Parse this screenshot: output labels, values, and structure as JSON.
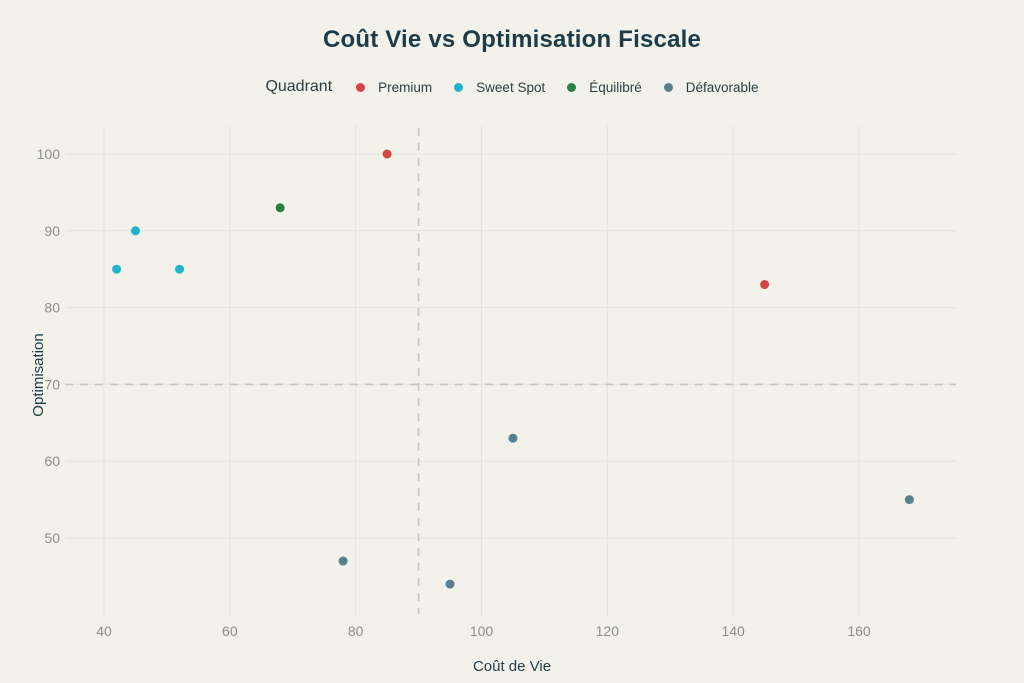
{
  "page": {
    "background_color": "#F2F1EA"
  },
  "chart_data": {
    "type": "scatter",
    "title": "Coût Vie vs Optimisation Fiscale",
    "xlabel": "Coût de Vie",
    "ylabel": "Optimisation",
    "legend": {
      "title": "Quadrant",
      "position": "top"
    },
    "grid": true,
    "xlim": [
      38,
      176
    ],
    "ylim": [
      41,
      104
    ],
    "x_ticks": [
      40,
      60,
      80,
      100,
      120,
      140,
      160
    ],
    "y_ticks": [
      50,
      60,
      70,
      80,
      90,
      100
    ],
    "reference_lines": [
      {
        "orientation": "vertical",
        "x": 90,
        "style": "dashed"
      },
      {
        "orientation": "horizontal",
        "y": 70,
        "style": "dashed"
      }
    ],
    "series": [
      {
        "name": "Premium",
        "color": "#D64541",
        "points": [
          [
            85,
            100
          ],
          [
            145,
            83
          ]
        ]
      },
      {
        "name": "Sweet Spot",
        "color": "#1FB3CE",
        "points": [
          [
            45,
            90
          ],
          [
            42,
            85
          ],
          [
            52,
            85
          ]
        ]
      },
      {
        "name": "Équilibré",
        "color": "#2A7E4A",
        "points": [
          [
            68,
            93
          ]
        ]
      },
      {
        "name": "Défavorable",
        "color": "#55808F",
        "points": [
          [
            105,
            63
          ],
          [
            168,
            55
          ],
          [
            78,
            47
          ],
          [
            95,
            44
          ]
        ]
      }
    ],
    "colors": {
      "title": "#1E3C48",
      "axis_title": "#1E3C48",
      "tick_label": "#8E8E88",
      "gridline": "#E4E3DC",
      "reference_line": "#C6C5BE",
      "background": "#F2F1EA"
    }
  }
}
